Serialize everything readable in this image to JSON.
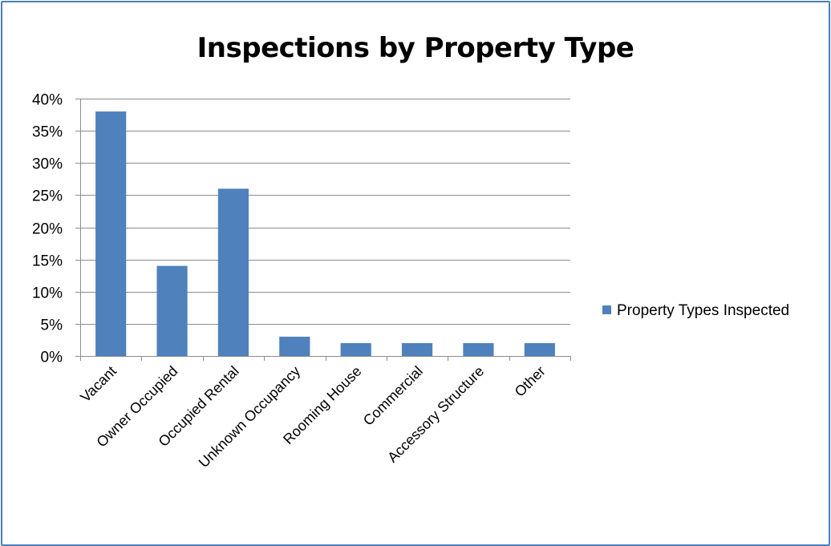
{
  "chart_data": {
    "type": "bar",
    "title": "Inspections by Property Type",
    "categories": [
      "Vacant",
      "Owner Occupied",
      "Occupied Rental",
      "Unknown Occupancy",
      "Rooming House",
      "Commercial",
      "Accessory Structure",
      "Other"
    ],
    "series": [
      {
        "name": "Property Types Inspected",
        "values": [
          38,
          14,
          26,
          3,
          2,
          2,
          2,
          2
        ],
        "color": "#4f81bd"
      }
    ],
    "y_ticks": [
      "0%",
      "5%",
      "10%",
      "15%",
      "20%",
      "25%",
      "30%",
      "35%",
      "40%"
    ],
    "ylim": [
      0,
      40
    ],
    "y_unit": "percent",
    "grid": true,
    "legend_position": "right"
  }
}
